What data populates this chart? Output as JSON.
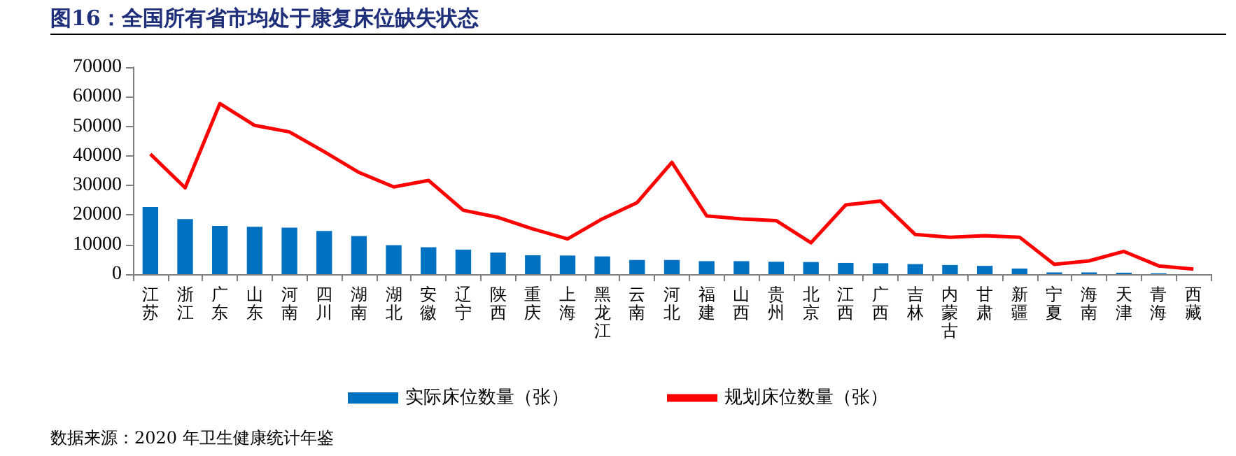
{
  "chart_data": {
    "type": "bar",
    "title": "图16：全国所有省市均处于康复床位缺失状态",
    "categories": [
      "江苏",
      "浙江",
      "广东",
      "山东",
      "河南",
      "四川",
      "湖南",
      "湖北",
      "安徽",
      "辽宁",
      "陕西",
      "重庆",
      "上海",
      "黑龙江",
      "云南",
      "河北",
      "福建",
      "山西",
      "贵州",
      "北京",
      "江西",
      "广西",
      "吉林",
      "内蒙古",
      "甘肃",
      "新疆",
      "宁夏",
      "海南",
      "天津",
      "青海",
      "西藏"
    ],
    "series": [
      {
        "name": "实际床位数量（张）",
        "color": "#0070c0",
        "values": [
          22700,
          18600,
          16300,
          16000,
          15700,
          14600,
          12900,
          9800,
          9100,
          8300,
          7300,
          6400,
          6300,
          6000,
          4800,
          4800,
          4400,
          4400,
          4200,
          4100,
          3800,
          3700,
          3400,
          3100,
          2800,
          1900,
          600,
          600,
          500,
          300,
          null
        ]
      },
      {
        "name": "规划床位数量（张）",
        "type": "line",
        "color": "#ff0000",
        "values": [
          40600,
          29200,
          57700,
          50300,
          48100,
          41400,
          34400,
          29500,
          31700,
          21600,
          19200,
          15300,
          11900,
          18700,
          24200,
          37800,
          19700,
          18700,
          18100,
          10600,
          23400,
          24700,
          13400,
          12500,
          13000,
          12500,
          3300,
          4500,
          7700,
          2800,
          1700
        ]
      }
    ],
    "ylim": [
      0,
      70000
    ],
    "yticks": [
      0,
      10000,
      20000,
      30000,
      40000,
      50000,
      60000,
      70000
    ],
    "grid": false,
    "legend": "bottom",
    "marker": "none",
    "line_style": "solid",
    "annotations": [
      "数据来源：2020 年卫生健康统计年鉴"
    ]
  }
}
